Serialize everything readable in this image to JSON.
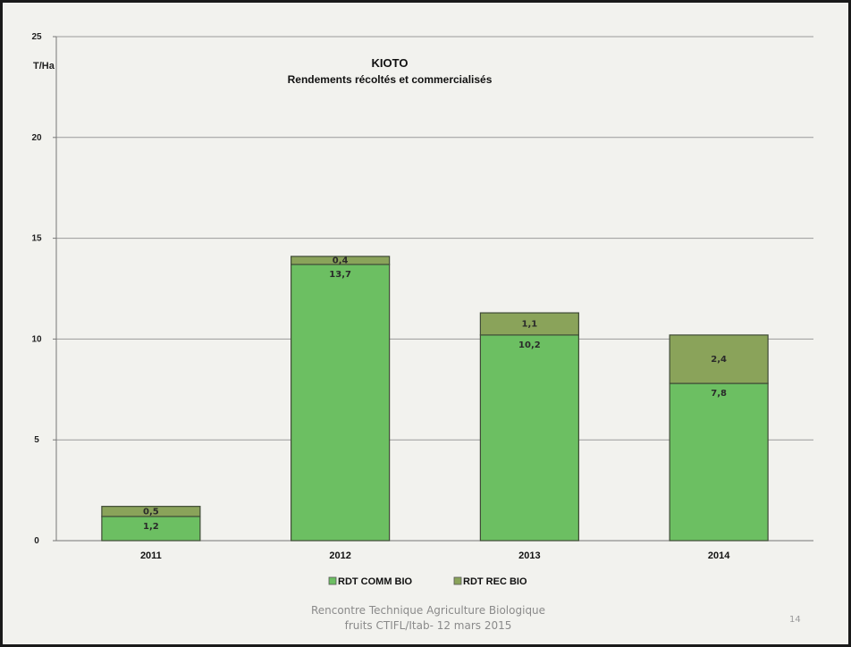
{
  "chart_data": {
    "type": "bar",
    "stacked": true,
    "title": "KIOTO",
    "subtitle": "Rendements  récoltés et  commercialisés",
    "ylabel": "T/Ha",
    "xlabel": "",
    "categories": [
      "2011",
      "2012",
      "2013",
      "2014"
    ],
    "ylim": [
      0,
      25
    ],
    "yticks": [
      "0",
      "5",
      "10",
      "15",
      "20",
      "25"
    ],
    "grid": true,
    "legend_position": "bottom",
    "series": [
      {
        "name": "RDT COMM BIO",
        "values": [
          1.2,
          13.7,
          10.2,
          7.8
        ],
        "labels": [
          "1,2",
          "13,7",
          "10,2",
          "7,8"
        ],
        "color": "#6cbf62"
      },
      {
        "name": "RDT REC BIO",
        "values": [
          0.5,
          0.4,
          1.1,
          2.4
        ],
        "labels": [
          "0,5",
          "0,4",
          "1,1",
          "2,4"
        ],
        "color": "#8aa35a"
      }
    ]
  },
  "footer": {
    "line1": "Rencontre Technique Agriculture Biologique",
    "line2": "fruits CTIFL/Itab- 12 mars 2015",
    "page_number": "14"
  }
}
